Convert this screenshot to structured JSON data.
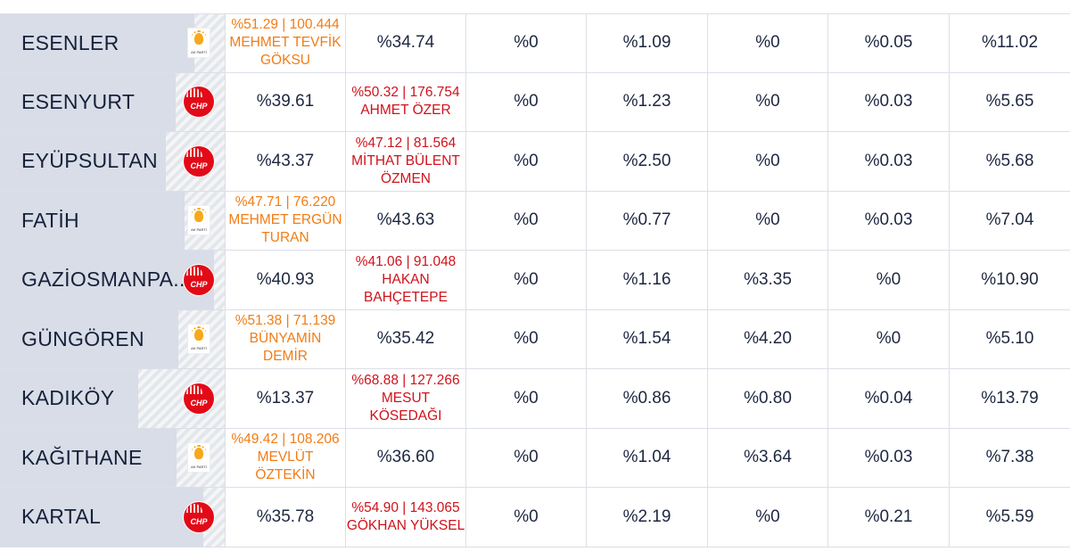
{
  "rows": [
    {
      "district": "ESENLER",
      "party": "akp",
      "logo_text": "AK PARTİ",
      "c1_top": "%51.29 | 100.444",
      "c1_name": "MEHMET TEVFİK GÖKSU",
      "c2": "%34.74",
      "c3": "%0",
      "c4": "%1.09",
      "c5": "%0",
      "c6": "%0.05",
      "c7": "%11.02"
    },
    {
      "district": "ESENYURT",
      "party": "chp",
      "logo_text": "CHP",
      "c1": "%39.61",
      "c2_top": "%50.32 | 176.754",
      "c2_name": "AHMET ÖZER",
      "c3": "%0",
      "c4": "%1.23",
      "c5": "%0",
      "c6": "%0.03",
      "c7": "%5.65"
    },
    {
      "district": "EYÜPSULTAN",
      "party": "chp",
      "logo_text": "CHP",
      "c1": "%43.37",
      "c2_top": "%47.12 | 81.564",
      "c2_name": "MİTHAT BÜLENT ÖZMEN",
      "c3": "%0",
      "c4": "%2.50",
      "c5": "%0",
      "c6": "%0.03",
      "c7": "%5.68"
    },
    {
      "district": "FATİH",
      "party": "akp",
      "logo_text": "AK PARTİ",
      "c1_top": "%47.71 | 76.220",
      "c1_name": "MEHMET ERGÜN TURAN",
      "c2": "%43.63",
      "c3": "%0",
      "c4": "%0.77",
      "c5": "%0",
      "c6": "%0.03",
      "c7": "%7.04"
    },
    {
      "district": "GAZİOSMANPA...",
      "party": "chp",
      "logo_text": "CHP",
      "c1": "%40.93",
      "c2_top": "%41.06 | 91.048",
      "c2_name": "HAKAN BAHÇETEPE",
      "c3": "%0",
      "c4": "%1.16",
      "c5": "%3.35",
      "c6": "%0",
      "c7": "%10.90"
    },
    {
      "district": "GÜNGÖREN",
      "party": "akp",
      "logo_text": "AK PARTİ",
      "c1_top": "%51.38 | 71.139",
      "c1_name": "BÜNYAMİN DEMİR",
      "c2": "%35.42",
      "c3": "%0",
      "c4": "%1.54",
      "c5": "%4.20",
      "c6": "%0",
      "c7": "%5.10"
    },
    {
      "district": "KADIKÖY",
      "party": "chp",
      "logo_text": "CHP",
      "c1": "%13.37",
      "c2_top": "%68.88 | 127.266",
      "c2_name": "MESUT KÖSEDAĞI",
      "c3": "%0",
      "c4": "%0.86",
      "c5": "%0.80",
      "c6": "%0.04",
      "c7": "%13.79"
    },
    {
      "district": "KAĞITHANE",
      "party": "akp",
      "logo_text": "AK PARTİ",
      "c1_top": "%49.42 | 108.206",
      "c1_name": "MEVLÜT ÖZTEKİN",
      "c2": "%36.60",
      "c3": "%0",
      "c4": "%1.04",
      "c5": "%3.64",
      "c6": "%0.03",
      "c7": "%7.38"
    },
    {
      "district": "KARTAL",
      "party": "chp",
      "logo_text": "CHP",
      "c1": "%35.78",
      "c2_top": "%54.90 | 143.065",
      "c2_name": "GÖKHAN YÜKSEL",
      "c3": "%0",
      "c4": "%2.19",
      "c5": "%0",
      "c6": "%0.21",
      "c7": "%5.59"
    }
  ]
}
